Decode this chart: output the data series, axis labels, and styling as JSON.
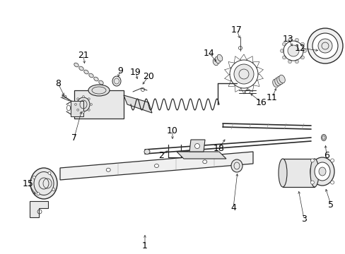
{
  "bg_color": "#ffffff",
  "line_color": "#2a2a2a",
  "text_color": "#000000",
  "font_size": 8.5,
  "figsize": [
    4.89,
    3.6
  ],
  "dpi": 100,
  "xlim": [
    0,
    489
  ],
  "ylim": [
    0,
    360
  ]
}
